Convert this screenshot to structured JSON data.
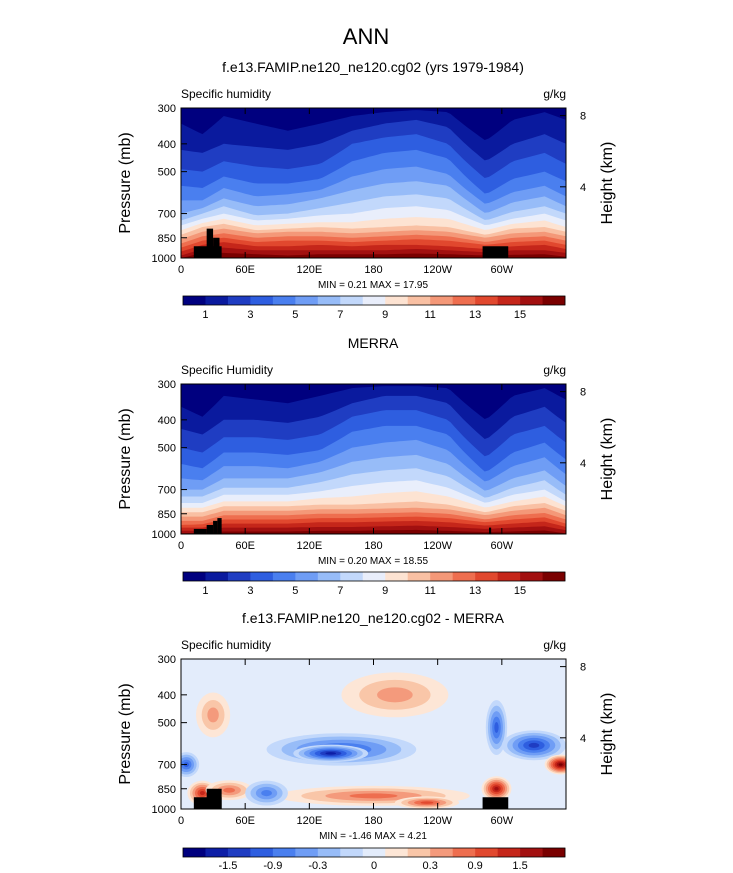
{
  "figure": {
    "title": "ANN"
  },
  "chart_data": [
    {
      "type": "heatmap",
      "title": "f.e13.FAMIP.ne120_ne120.cg02 (yrs 1979-1984)",
      "field_label": "Specific humidity",
      "units": "g/kg",
      "ylabel": "Pressure (mb)",
      "y2label": "Height (km)",
      "xticks": [
        "0",
        "60E",
        "120E",
        "180",
        "120W",
        "60W"
      ],
      "xtick_values": [
        0,
        60,
        120,
        180,
        240,
        300
      ],
      "yticks": [
        "300",
        "400",
        "500",
        "700",
        "850",
        "1000"
      ],
      "ytick_values": [
        300,
        400,
        500,
        700,
        850,
        1000
      ],
      "y2ticks": [
        "8",
        "4"
      ],
      "y2tick_values": [
        8,
        4
      ],
      "xlim": [
        0,
        360
      ],
      "ylim": [
        1000,
        300
      ],
      "y_scale": "log",
      "stats_text": "MIN =    0.21   MAX =   17.95",
      "min": 0.21,
      "max": 17.95,
      "colorbar": {
        "labels": [
          "1",
          "3",
          "5",
          "7",
          "9",
          "11",
          "13",
          "15"
        ],
        "colors": [
          "#00007f",
          "#0a1a9e",
          "#1f3dc2",
          "#2e5ee0",
          "#4a7fef",
          "#6f9df5",
          "#97bcf8",
          "#c2d8fb",
          "#e9eefb",
          "#fde3d2",
          "#f9c0a3",
          "#f49878",
          "#ee6e4f",
          "#e1482e",
          "#c5261a",
          "#a21010",
          "#7a0000"
        ]
      },
      "sections": [
        {
          "lon": 0,
          "p": [
            340,
            420,
            490,
            560,
            630,
            700,
            740,
            770,
            800,
            830,
            860,
            890,
            920,
            950,
            980,
            1000
          ]
        },
        {
          "lon": 20,
          "p": [
            370,
            430,
            500,
            570,
            630,
            670,
            700,
            730,
            755,
            780,
            810,
            840,
            870,
            900,
            930,
            960
          ]
        },
        {
          "lon": 40,
          "p": [
            320,
            400,
            460,
            520,
            570,
            620,
            660,
            700,
            730,
            760,
            790,
            820,
            850,
            880,
            920,
            960
          ]
        },
        {
          "lon": 70,
          "p": [
            340,
            410,
            480,
            550,
            610,
            660,
            710,
            740,
            770,
            800,
            820,
            850,
            880,
            910,
            940,
            970
          ]
        },
        {
          "lon": 100,
          "p": [
            360,
            420,
            490,
            550,
            600,
            650,
            700,
            730,
            760,
            790,
            810,
            840,
            870,
            910,
            940,
            980
          ]
        },
        {
          "lon": 130,
          "p": [
            340,
            400,
            470,
            530,
            580,
            620,
            670,
            710,
            750,
            780,
            810,
            840,
            870,
            900,
            940,
            970
          ]
        },
        {
          "lon": 160,
          "p": [
            320,
            360,
            400,
            460,
            520,
            580,
            640,
            700,
            750,
            790,
            820,
            850,
            880,
            910,
            940,
            970
          ]
        },
        {
          "lon": 190,
          "p": [
            310,
            340,
            380,
            430,
            490,
            550,
            610,
            670,
            730,
            780,
            810,
            840,
            870,
            900,
            940,
            970
          ]
        },
        {
          "lon": 220,
          "p": [
            305,
            330,
            370,
            420,
            480,
            540,
            600,
            660,
            720,
            770,
            800,
            830,
            860,
            900,
            930,
            965
          ]
        },
        {
          "lon": 250,
          "p": [
            310,
            350,
            400,
            450,
            510,
            560,
            620,
            680,
            730,
            780,
            810,
            840,
            870,
            910,
            940,
            970
          ]
        },
        {
          "lon": 285,
          "p": [
            390,
            460,
            530,
            600,
            650,
            700,
            740,
            770,
            800,
            830,
            850,
            880,
            900,
            930,
            955,
            980
          ]
        },
        {
          "lon": 310,
          "p": [
            330,
            400,
            460,
            530,
            590,
            640,
            690,
            730,
            760,
            790,
            820,
            850,
            880,
            910,
            940,
            975
          ]
        },
        {
          "lon": 340,
          "p": [
            310,
            370,
            430,
            500,
            560,
            610,
            660,
            700,
            740,
            780,
            810,
            840,
            870,
            900,
            940,
            970
          ]
        },
        {
          "lon": 360,
          "p": [
            330,
            400,
            470,
            540,
            610,
            660,
            700,
            740,
            780,
            810,
            840,
            870,
            900,
            930,
            960,
            990
          ]
        }
      ],
      "terrain": [
        {
          "lon0": 12,
          "lon1": 38,
          "p": 910
        },
        {
          "lon0": 24,
          "lon1": 30,
          "p": 790
        },
        {
          "lon0": 30,
          "lon1": 36,
          "p": 850
        },
        {
          "lon0": 282,
          "lon1": 306,
          "p": 910
        }
      ]
    },
    {
      "type": "heatmap",
      "title": "MERRA",
      "field_label": "Specific Humidity",
      "units": "g/kg",
      "ylabel": "Pressure (mb)",
      "y2label": "Height (km)",
      "xticks": [
        "0",
        "60E",
        "120E",
        "180",
        "120W",
        "60W"
      ],
      "xtick_values": [
        0,
        60,
        120,
        180,
        240,
        300
      ],
      "yticks": [
        "300",
        "400",
        "500",
        "700",
        "850",
        "1000"
      ],
      "ytick_values": [
        300,
        400,
        500,
        700,
        850,
        1000
      ],
      "y2ticks": [
        "8",
        "4"
      ],
      "y2tick_values": [
        8,
        4
      ],
      "xlim": [
        0,
        360
      ],
      "ylim": [
        1000,
        300
      ],
      "y_scale": "log",
      "stats_text": "MIN =    0.20   MAX =   18.55",
      "min": 0.2,
      "max": 18.55,
      "colorbar": {
        "labels": [
          "1",
          "3",
          "5",
          "7",
          "9",
          "11",
          "13",
          "15"
        ],
        "colors": [
          "#00007f",
          "#0a1a9e",
          "#1f3dc2",
          "#2e5ee0",
          "#4a7fef",
          "#6f9df5",
          "#97bcf8",
          "#c2d8fb",
          "#e9eefb",
          "#fde3d2",
          "#f9c0a3",
          "#f49878",
          "#ee6e4f",
          "#e1482e",
          "#c5261a",
          "#a21010",
          "#7a0000"
        ]
      },
      "sections": [
        {
          "lon": 0,
          "p": [
            360,
            430,
            500,
            570,
            640,
            700,
            740,
            780,
            810,
            840,
            870,
            900,
            930,
            950,
            975,
            995
          ]
        },
        {
          "lon": 20,
          "p": [
            390,
            450,
            520,
            590,
            650,
            700,
            740,
            780,
            810,
            840,
            870,
            900,
            925,
            950,
            975,
            990
          ]
        },
        {
          "lon": 40,
          "p": [
            330,
            400,
            460,
            520,
            580,
            640,
            690,
            730,
            770,
            800,
            830,
            860,
            890,
            920,
            950,
            980
          ]
        },
        {
          "lon": 70,
          "p": [
            340,
            400,
            460,
            520,
            580,
            640,
            690,
            730,
            770,
            800,
            830,
            860,
            890,
            920,
            950,
            980
          ]
        },
        {
          "lon": 100,
          "p": [
            350,
            410,
            470,
            530,
            590,
            640,
            690,
            730,
            770,
            800,
            830,
            860,
            890,
            920,
            950,
            980
          ]
        },
        {
          "lon": 130,
          "p": [
            330,
            390,
            450,
            510,
            560,
            610,
            660,
            710,
            750,
            790,
            820,
            850,
            880,
            910,
            945,
            975
          ]
        },
        {
          "lon": 160,
          "p": [
            310,
            350,
            390,
            440,
            500,
            560,
            620,
            680,
            740,
            790,
            820,
            850,
            880,
            910,
            945,
            975
          ]
        },
        {
          "lon": 190,
          "p": [
            305,
            330,
            370,
            420,
            480,
            540,
            600,
            660,
            720,
            780,
            815,
            845,
            875,
            905,
            940,
            970
          ]
        },
        {
          "lon": 220,
          "p": [
            305,
            330,
            370,
            420,
            470,
            530,
            590,
            650,
            710,
            770,
            810,
            840,
            870,
            900,
            935,
            968
          ]
        },
        {
          "lon": 250,
          "p": [
            310,
            350,
            400,
            450,
            510,
            570,
            630,
            690,
            740,
            790,
            820,
            850,
            880,
            910,
            945,
            975
          ]
        },
        {
          "lon": 285,
          "p": [
            400,
            470,
            540,
            610,
            660,
            710,
            750,
            780,
            810,
            840,
            860,
            890,
            910,
            935,
            960,
            985
          ]
        },
        {
          "lon": 310,
          "p": [
            330,
            390,
            450,
            520,
            580,
            640,
            690,
            730,
            770,
            800,
            830,
            860,
            890,
            920,
            950,
            980
          ]
        },
        {
          "lon": 340,
          "p": [
            310,
            360,
            420,
            480,
            540,
            600,
            650,
            700,
            740,
            780,
            810,
            845,
            875,
            905,
            940,
            972
          ]
        },
        {
          "lon": 360,
          "p": [
            340,
            410,
            480,
            550,
            620,
            680,
            730,
            770,
            800,
            830,
            860,
            890,
            920,
            945,
            970,
            995
          ]
        }
      ],
      "terrain": [
        {
          "lon0": 12,
          "lon1": 24,
          "p": 960
        },
        {
          "lon0": 24,
          "lon1": 30,
          "p": 930
        },
        {
          "lon0": 30,
          "lon1": 34,
          "p": 900
        },
        {
          "lon0": 34,
          "lon1": 38,
          "p": 880
        },
        {
          "lon0": 288,
          "lon1": 290,
          "p": 950
        }
      ]
    },
    {
      "type": "heatmap",
      "title": "f.e13.FAMIP.ne120_ne120.cg02 - MERRA",
      "field_label": "Specific humidity",
      "units": "g/kg",
      "ylabel": "Pressure (mb)",
      "y2label": "Height (km)",
      "xticks": [
        "0",
        "60E",
        "120E",
        "180",
        "120W",
        "60W"
      ],
      "xtick_values": [
        0,
        60,
        120,
        180,
        240,
        300
      ],
      "yticks": [
        "300",
        "400",
        "500",
        "700",
        "850",
        "1000"
      ],
      "ytick_values": [
        300,
        400,
        500,
        700,
        850,
        1000
      ],
      "y2ticks": [
        "8",
        "4"
      ],
      "y2tick_values": [
        8,
        4
      ],
      "xlim": [
        0,
        360
      ],
      "ylim": [
        1000,
        300
      ],
      "y_scale": "log",
      "stats_text": "MIN =   -1.46   MAX =    4.21",
      "min": -1.46,
      "max": 4.21,
      "colorbar": {
        "labels": [
          "-1.5",
          "-0.9",
          "-0.3",
          "0",
          "0.3",
          "0.9",
          "1.5"
        ],
        "colors": [
          "#00007f",
          "#0d1ea6",
          "#1f3dc2",
          "#2e5ee0",
          "#4a7fef",
          "#6f9df5",
          "#97bcf8",
          "#c2d8fb",
          "#e3ecfb",
          "#fde6d6",
          "#f9c6a8",
          "#f49a7c",
          "#ee6e4f",
          "#e1482e",
          "#c5261a",
          "#a21010",
          "#7a0000"
        ]
      },
      "anomalies": [
        {
          "lon": 20,
          "p": 880,
          "rx": 14,
          "ry": 0.1,
          "v": 13
        },
        {
          "lon": 45,
          "p": 860,
          "rx": 22,
          "ry": 0.08,
          "v": 11
        },
        {
          "lon": 30,
          "p": 470,
          "rx": 16,
          "ry": 0.18,
          "v": 10
        },
        {
          "lon": 150,
          "p": 620,
          "rx": 70,
          "ry": 0.13,
          "v": 4
        },
        {
          "lon": 140,
          "p": 640,
          "rx": 35,
          "ry": 0.07,
          "v": 2
        },
        {
          "lon": 200,
          "p": 400,
          "rx": 50,
          "ry": 0.18,
          "v": 10
        },
        {
          "lon": 180,
          "p": 900,
          "rx": 90,
          "ry": 0.08,
          "v": 11
        },
        {
          "lon": 230,
          "p": 950,
          "rx": 30,
          "ry": 0.05,
          "v": 12
        },
        {
          "lon": 295,
          "p": 850,
          "rx": 14,
          "ry": 0.1,
          "v": 14
        },
        {
          "lon": 295,
          "p": 520,
          "rx": 10,
          "ry": 0.22,
          "v": 4
        },
        {
          "lon": 330,
          "p": 600,
          "rx": 30,
          "ry": 0.12,
          "v": 3
        },
        {
          "lon": 355,
          "p": 700,
          "rx": 15,
          "ry": 0.08,
          "v": 15
        },
        {
          "lon": 80,
          "p": 880,
          "rx": 20,
          "ry": 0.1,
          "v": 5
        },
        {
          "lon": 5,
          "p": 700,
          "rx": 12,
          "ry": 0.1,
          "v": 4
        }
      ],
      "terrain": [
        {
          "lon0": 12,
          "lon1": 38,
          "p": 910
        },
        {
          "lon0": 24,
          "lon1": 38,
          "p": 850
        },
        {
          "lon0": 282,
          "lon1": 306,
          "p": 910
        }
      ]
    }
  ]
}
